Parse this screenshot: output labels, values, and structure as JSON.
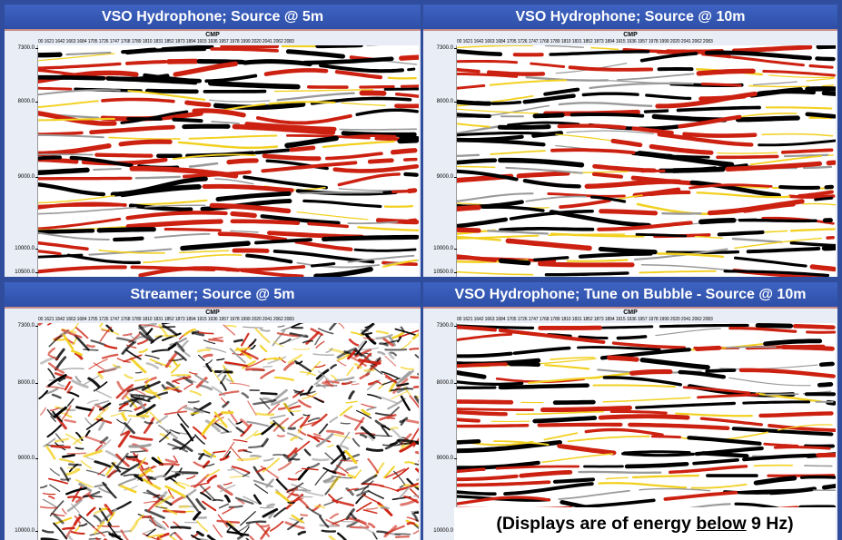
{
  "axis": {
    "cmp_label": "CMP",
    "cmp_ticks": [
      "00",
      "1621",
      "1642",
      "1663",
      "1684",
      "1705",
      "1726",
      "1747",
      "1768",
      "1789",
      "1810",
      "1831",
      "1852",
      "1873",
      "1894",
      "1915",
      "1936",
      "1957",
      "1978",
      "1999",
      "2020",
      "2041",
      "2062",
      "2083"
    ],
    "depth_ticks_full": [
      "7300.0",
      "8000.0",
      "9000.0",
      "10000.0",
      "10500.0"
    ],
    "depth_ticks_partial": [
      "7300.0",
      "8000.0",
      "9000.0",
      "10000.0"
    ]
  },
  "panels": [
    {
      "id": "top-left",
      "title": "VSO Hydrophone; Source @ 5m",
      "style": "continuous"
    },
    {
      "id": "top-right",
      "title": "VSO Hydrophone; Source @ 10m",
      "style": "continuous"
    },
    {
      "id": "bottom-left",
      "title": "Streamer; Source @ 5m",
      "style": "noisy"
    },
    {
      "id": "bottom-right",
      "title": "VSO Hydrophone; Tune on Bubble - Source @ 10m",
      "style": "continuous"
    }
  ],
  "note": {
    "prefix": "(Displays are of energy ",
    "emphasis": "below",
    "suffix": " 9 Hz)"
  },
  "colors": {
    "frame_blue": "#2f4d9c",
    "title_blue": "#3a5cb8",
    "peak_black": "#000000",
    "peak_red": "#cc2010",
    "amp_yellow": "#f2d020",
    "amp_gray": "#9a9a9a"
  }
}
